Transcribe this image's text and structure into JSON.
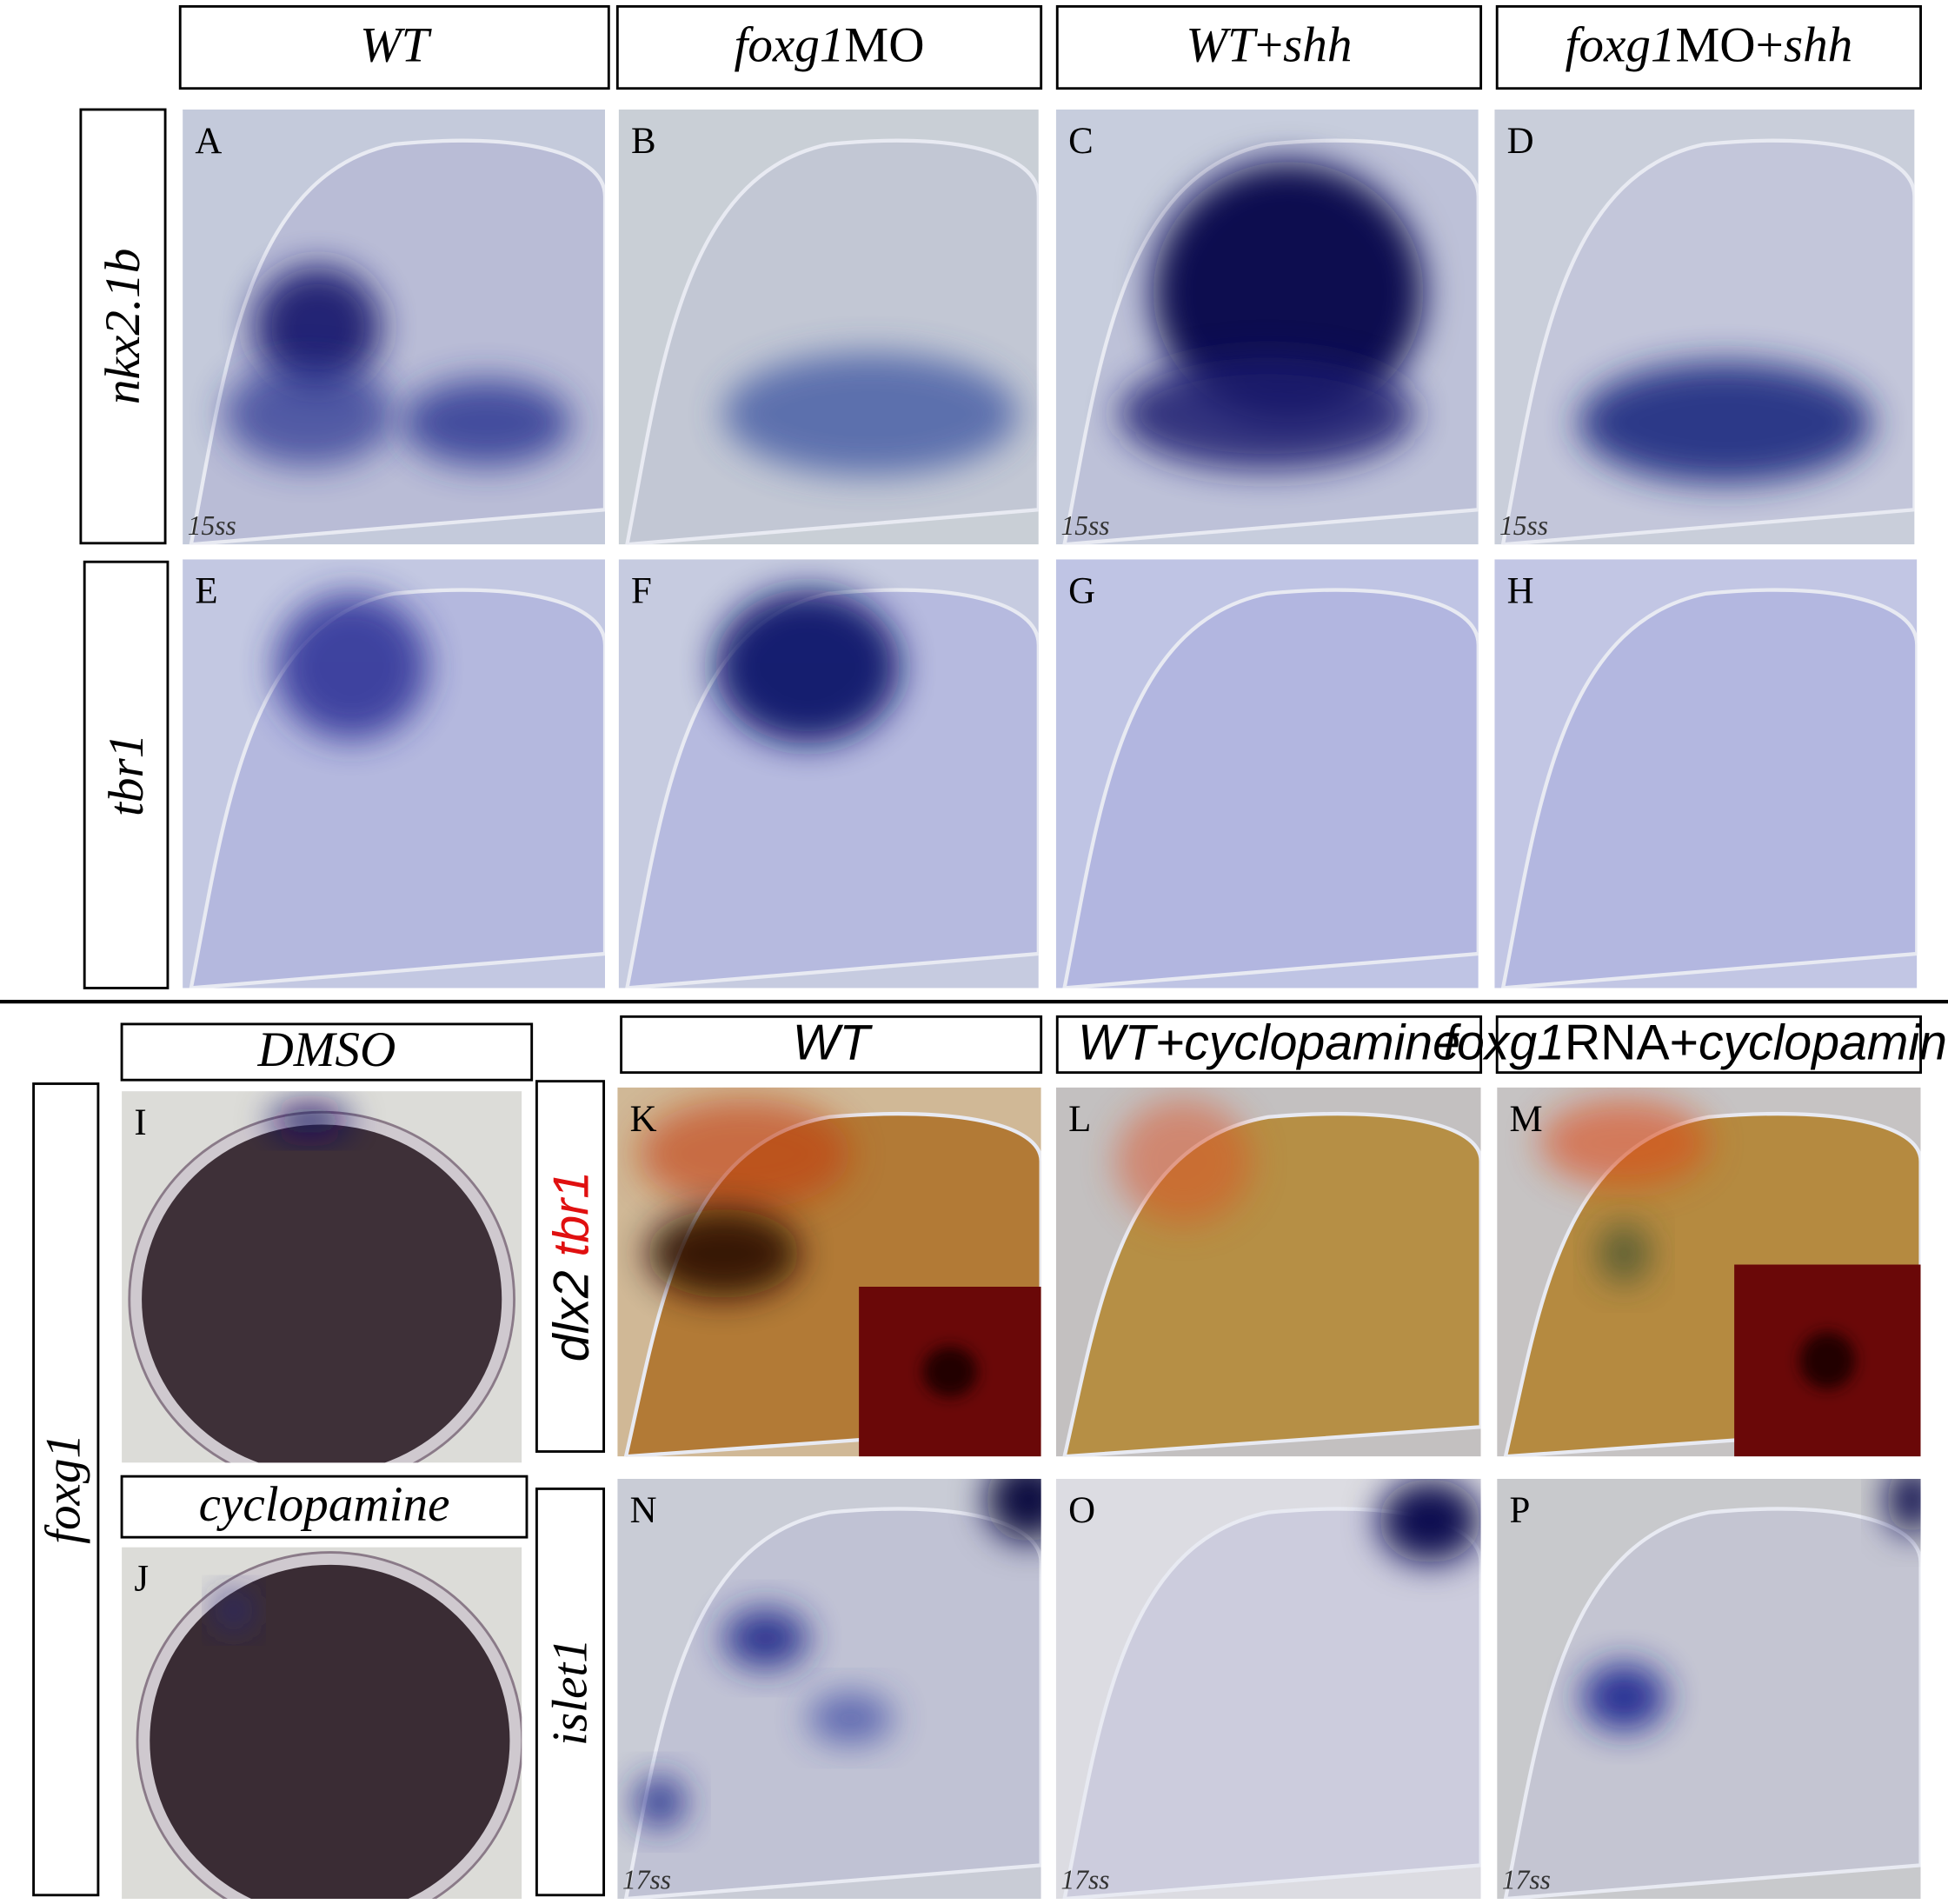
{
  "column_headers": [
    [
      {
        "text": "WT",
        "italic": true
      }
    ],
    [
      {
        "text": "foxg1",
        "italic": true
      },
      {
        "text": "MO"
      }
    ],
    [
      {
        "text": "WT",
        "italic": true
      },
      {
        "text": "+"
      },
      {
        "text": "shh",
        "italic": true
      }
    ],
    [
      {
        "text": "foxg1",
        "italic": true
      },
      {
        "text": "MO+"
      },
      {
        "text": "shh",
        "italic": true
      }
    ]
  ],
  "row_labels": [
    [
      {
        "text": "nkx2.1b",
        "italic": true
      }
    ],
    [
      {
        "text": "tbr1",
        "italic": true
      }
    ]
  ],
  "panels": [
    {
      "letter": "A",
      "stage": "15ss"
    },
    {
      "letter": "B"
    },
    {
      "letter": "C",
      "stage": "15ss"
    },
    {
      "letter": "D",
      "stage": "15ss"
    },
    {
      "letter": "E"
    },
    {
      "letter": "F"
    },
    {
      "letter": "G"
    },
    {
      "letter": "H"
    }
  ],
  "lower": {
    "treatment_headers": [
      [
        {
          "text": "DMSO",
          "italic": true
        }
      ],
      [
        {
          "text": "cyclopamine",
          "italic": true
        }
      ]
    ],
    "gene_label": [
      {
        "text": "foxg1",
        "italic": true
      }
    ],
    "column_headers": [
      [
        {
          "text": "WT",
          "italic": true
        }
      ],
      [
        {
          "text": "WT",
          "italic": true
        },
        {
          "text": "+cyclopamine",
          "italic": true
        }
      ],
      [
        {
          "text": "foxg1",
          "italic": true
        },
        {
          "text": "RNA+"
        },
        {
          "text": "cyclopamine",
          "italic": true
        }
      ]
    ],
    "row_labels": [
      [
        {
          "text": "dlx2",
          "italic": true,
          "color": "#000000"
        },
        {
          "text": " "
        },
        {
          "text": "tbr1",
          "italic": true,
          "color": "#e01010"
        }
      ],
      [
        {
          "text": "islet1",
          "italic": true
        }
      ]
    ],
    "panels": [
      {
        "letter": "I"
      },
      {
        "letter": "J"
      },
      {
        "letter": "K"
      },
      {
        "letter": "L"
      },
      {
        "letter": "M"
      },
      {
        "letter": "N",
        "stage": "17ss"
      },
      {
        "letter": "O",
        "stage": "17ss"
      },
      {
        "letter": "P",
        "stage": "17ss"
      }
    ]
  }
}
